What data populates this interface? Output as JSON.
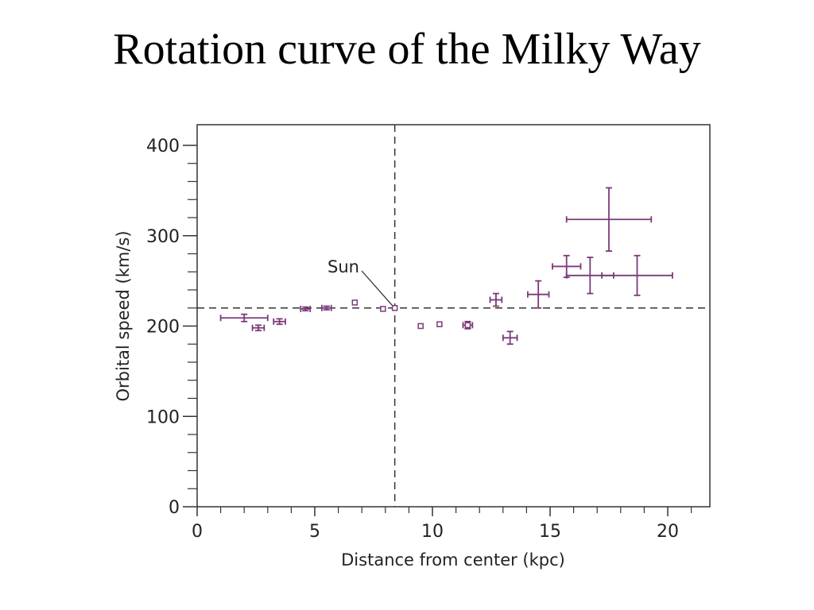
{
  "slide": {
    "title": "Rotation curve of the Milky Way"
  },
  "chart_data": {
    "type": "scatter",
    "title": "",
    "xlabel": "Distance from center (kpc)",
    "ylabel": "Orbital speed (km/s)",
    "xlim": [
      0,
      22
    ],
    "ylim": [
      0,
      420
    ],
    "x_ticks": [
      0,
      5,
      10,
      15,
      20
    ],
    "y_ticks": [
      0,
      100,
      200,
      300,
      400
    ],
    "grid": false,
    "marker_color": "#7a3b78",
    "reference_lines": {
      "sun_distance_kpc": 8.4,
      "sun_speed_kms": 220
    },
    "annotations": [
      {
        "text": "Sun",
        "x": 8.4,
        "y": 220
      }
    ],
    "series": [
      {
        "points": [
          {
            "x": 2.0,
            "y": 209,
            "xerr": 1.0,
            "yerr": 4,
            "marker": "none"
          },
          {
            "x": 2.6,
            "y": 198,
            "xerr": 0.25,
            "yerr": 3,
            "marker": "none"
          },
          {
            "x": 3.5,
            "y": 205,
            "xerr": 0.25,
            "yerr": 3,
            "marker": "none"
          },
          {
            "x": 4.6,
            "y": 219,
            "xerr": 0.2,
            "yerr": 2,
            "marker": "none"
          },
          {
            "x": 5.5,
            "y": 220,
            "xerr": 0.2,
            "yerr": 2,
            "marker": "none"
          },
          {
            "x": 6.7,
            "y": 226,
            "xerr": 0,
            "yerr": 0,
            "marker": "square"
          },
          {
            "x": 7.9,
            "y": 219,
            "xerr": 0,
            "yerr": 0,
            "marker": "square"
          },
          {
            "x": 8.4,
            "y": 220,
            "xerr": 0,
            "yerr": 0,
            "marker": "square"
          },
          {
            "x": 9.5,
            "y": 200,
            "xerr": 0,
            "yerr": 0,
            "marker": "square"
          },
          {
            "x": 10.3,
            "y": 202,
            "xerr": 0,
            "yerr": 0,
            "marker": "square"
          },
          {
            "x": 11.5,
            "y": 201,
            "xerr": 0.2,
            "yerr": 4,
            "marker": "square"
          },
          {
            "x": 12.7,
            "y": 229,
            "xerr": 0.25,
            "yerr": 7,
            "marker": "none"
          },
          {
            "x": 13.3,
            "y": 187,
            "xerr": 0.3,
            "yerr": 7,
            "marker": "none"
          },
          {
            "x": 14.5,
            "y": 235,
            "xerr": 0.45,
            "yerr": 15,
            "marker": "none"
          },
          {
            "x": 15.7,
            "y": 266,
            "xerr": 0.6,
            "yerr": 12,
            "marker": "none"
          },
          {
            "x": 16.7,
            "y": 256,
            "xerr": 1.0,
            "yerr": 20,
            "marker": "none"
          },
          {
            "x": 17.5,
            "y": 318,
            "xerr": 1.8,
            "yerr": 35,
            "marker": "none"
          },
          {
            "x": 18.7,
            "y": 256,
            "xerr": 1.5,
            "yerr": 22,
            "marker": "none"
          }
        ]
      }
    ]
  }
}
